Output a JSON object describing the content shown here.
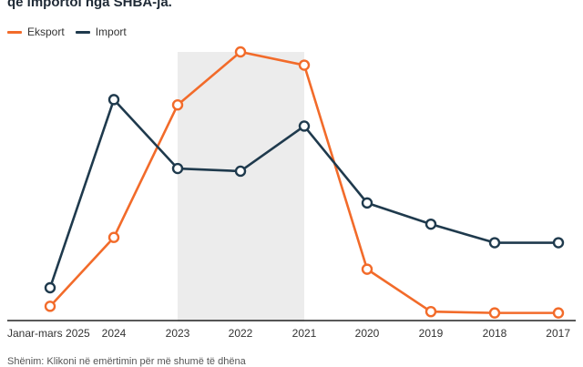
{
  "subtitle": "që importoi nga SHBA-ja.",
  "note": "Shënim: Klikoni në emërtimin për më shumë të dhëna",
  "colors": {
    "export": "#f26b2a",
    "import": "#1f3a4d",
    "highlight": "#ececec",
    "axis": "#222222"
  },
  "chart_data": {
    "type": "line",
    "title": "",
    "xlabel": "",
    "ylabel": "",
    "x": [
      "Janar-mars 2025",
      "2024",
      "2023",
      "2022",
      "2021",
      "2020",
      "2019",
      "2018",
      "2017"
    ],
    "highlight_range": [
      "2023",
      "2021"
    ],
    "ylim": [
      0,
      100
    ],
    "grid": false,
    "legend": "top-left",
    "series": [
      {
        "name": "Eksport",
        "values": [
          4,
          30,
          80,
          100,
          95,
          18,
          2,
          1.5,
          1.5
        ]
      },
      {
        "name": "Import",
        "values": [
          11,
          82,
          56,
          55,
          72,
          43,
          35,
          28,
          28
        ]
      }
    ]
  }
}
